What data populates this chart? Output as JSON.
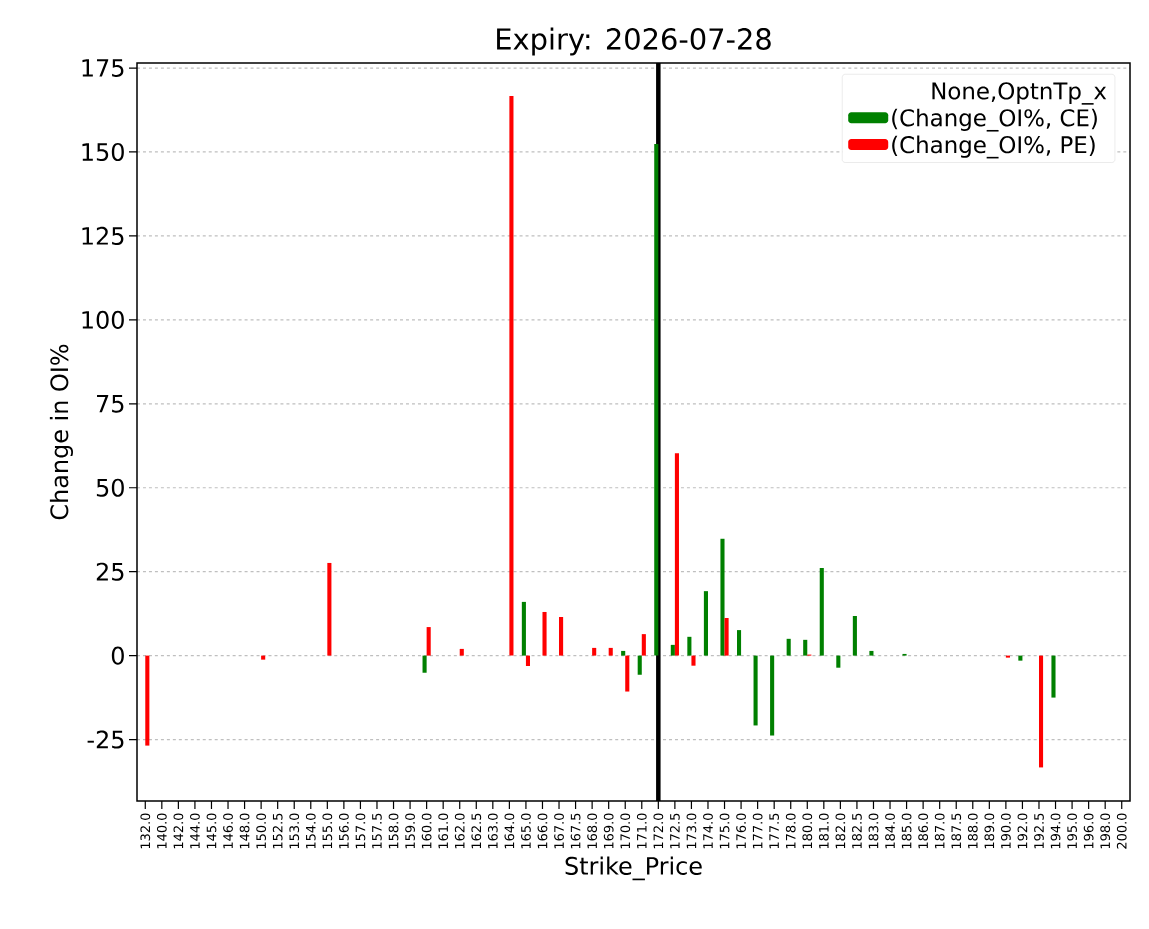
{
  "chart_data": {
    "type": "bar",
    "title": "Expiry: 2026-07-28",
    "xlabel": "Strike_Price",
    "ylabel": "Change in OI%",
    "legend_title": "None,OptnTp_x",
    "categories": [
      "132.0",
      "140.0",
      "142.0",
      "144.0",
      "145.0",
      "146.0",
      "148.0",
      "150.0",
      "152.5",
      "153.0",
      "154.0",
      "155.0",
      "156.0",
      "157.0",
      "157.5",
      "158.0",
      "159.0",
      "160.0",
      "161.0",
      "162.0",
      "162.5",
      "163.0",
      "164.0",
      "165.0",
      "166.0",
      "167.0",
      "167.5",
      "168.0",
      "169.0",
      "170.0",
      "171.0",
      "172.0",
      "172.5",
      "173.0",
      "174.0",
      "175.0",
      "176.0",
      "177.0",
      "177.5",
      "178.0",
      "180.0",
      "181.0",
      "182.0",
      "182.5",
      "183.0",
      "184.0",
      "185.0",
      "186.0",
      "187.0",
      "187.5",
      "188.0",
      "189.0",
      "190.0",
      "192.0",
      "192.5",
      "194.0",
      "195.0",
      "196.0",
      "198.0",
      "200.0"
    ],
    "series": [
      {
        "name": "(Change_OI%, CE)",
        "color": "#008000",
        "values": [
          0,
          0,
          0,
          0,
          0,
          0,
          0,
          0,
          0,
          0,
          0,
          0,
          0,
          0,
          0,
          0,
          0,
          -5.1,
          0,
          0,
          0,
          0,
          0,
          16.0,
          0,
          0,
          0,
          0,
          0,
          1.4,
          -5.7,
          152.4,
          3.2,
          5.6,
          19.2,
          34.8,
          7.6,
          -20.8,
          -23.8,
          5.0,
          4.7,
          26.1,
          -3.6,
          11.8,
          1.4,
          0,
          0.5,
          0,
          0,
          0,
          0,
          0,
          0,
          -1.5,
          0,
          -12.5,
          0,
          0,
          0,
          0
        ]
      },
      {
        "name": "(Change_OI%, PE)",
        "color": "#ff0000",
        "values": [
          -26.8,
          0,
          0,
          0,
          0,
          0,
          0,
          -1.2,
          0,
          0,
          0,
          27.6,
          0,
          0,
          0,
          0,
          0,
          8.5,
          0,
          2.0,
          0,
          0,
          166.7,
          -3.1,
          13.0,
          11.5,
          0,
          2.3,
          2.3,
          -10.7,
          6.4,
          0,
          60.3,
          -3.0,
          0,
          11.2,
          0,
          0,
          0,
          0,
          0.3,
          0,
          0,
          0,
          0,
          0,
          0,
          0,
          0,
          0,
          0,
          0,
          -0.6,
          0,
          -33.3,
          0,
          0,
          0,
          0,
          0
        ]
      }
    ],
    "ylim": [
      -43.3,
      176.5
    ],
    "yticks": [
      -25,
      0,
      25,
      50,
      75,
      100,
      125,
      150,
      175
    ],
    "ref_lines": [
      {
        "axis": "x",
        "value": "172.0",
        "color": "#000000"
      }
    ],
    "grid": "y",
    "legend": "top right"
  }
}
